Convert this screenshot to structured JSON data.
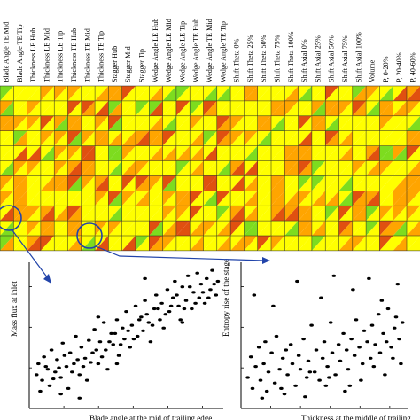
{
  "chart_data": [
    {
      "type": "heatmap",
      "title": "",
      "columns": [
        "Blade Angle TE Mid",
        "Blade Angle TE Tip",
        "Thickness LE Hub",
        "Thickness LE Mid",
        "Thickness LE Tip",
        "Thickness TE Hub",
        "Thickness TE Mid",
        "Thickness TE Tip",
        "Stagger Hub",
        "Stagger Mid",
        "Stagger Tip",
        "Wedge Angle LE Hub",
        "Wedge Angle LE Mid",
        "Wedge Angle LE Tip",
        "Wedge Angle TE Hub",
        "Wedge Angle TE Mid",
        "Wedge Angle TE Tip",
        "Shift Theta 0%",
        "Shift Theta 25%",
        "Shift Theta 50%",
        "Shift Theta 75%",
        "Shift Theta 100%",
        "Shift Axial 0%",
        "Shift Axial 25%",
        "Shift Axial 50%",
        "Shift Axial 75%",
        "Shift Axial 100%",
        "Volume",
        "P, 0-20%",
        "P, 20-40%",
        "P, 40-60%"
      ],
      "rows": 11,
      "cell_style": "each cell split diagonally into two triangles; color encodes correlation strength (yellow = low, orange/red = high, green = high)",
      "colors": {
        "low": "#ffff00",
        "mid": "#ffa500",
        "high": "#e05010",
        "strong": "#7ddc1f",
        "grid": "#222222"
      },
      "highlighted": [
        {
          "note": "left circle",
          "column": "Blade Angle TE Mid",
          "row": 10
        },
        {
          "note": "right circle",
          "column": "Thickness TE Mid",
          "row": 11
        }
      ]
    },
    {
      "type": "scatter",
      "title": "",
      "xlabel": "Blade angle at the mid of trailing edge",
      "ylabel": "Mass flux at inlet",
      "trend": "positive correlation",
      "points": [
        [
          0.02,
          0.22
        ],
        [
          0.03,
          0.3
        ],
        [
          0.05,
          0.18
        ],
        [
          0.06,
          0.35
        ],
        [
          0.08,
          0.26
        ],
        [
          0.09,
          0.14
        ],
        [
          0.1,
          0.4
        ],
        [
          0.12,
          0.24
        ],
        [
          0.13,
          0.33
        ],
        [
          0.15,
          0.2
        ],
        [
          0.16,
          0.45
        ],
        [
          0.18,
          0.28
        ],
        [
          0.19,
          0.12
        ],
        [
          0.2,
          0.38
        ],
        [
          0.22,
          0.3
        ],
        [
          0.23,
          0.5
        ],
        [
          0.25,
          0.22
        ],
        [
          0.26,
          0.42
        ],
        [
          0.28,
          0.34
        ],
        [
          0.29,
          0.18
        ],
        [
          0.3,
          0.47
        ],
        [
          0.32,
          0.38
        ],
        [
          0.33,
          0.55
        ],
        [
          0.35,
          0.3
        ],
        [
          0.36,
          0.46
        ],
        [
          0.38,
          0.6
        ],
        [
          0.39,
          0.4
        ],
        [
          0.4,
          0.26
        ],
        [
          0.42,
          0.52
        ],
        [
          0.43,
          0.44
        ],
        [
          0.45,
          0.62
        ],
        [
          0.46,
          0.36
        ],
        [
          0.48,
          0.56
        ],
        [
          0.49,
          0.48
        ],
        [
          0.5,
          0.68
        ],
        [
          0.52,
          0.42
        ],
        [
          0.53,
          0.58
        ],
        [
          0.55,
          0.72
        ],
        [
          0.56,
          0.5
        ],
        [
          0.58,
          0.64
        ],
        [
          0.59,
          0.54
        ],
        [
          0.6,
          0.76
        ],
        [
          0.62,
          0.6
        ],
        [
          0.63,
          0.46
        ],
        [
          0.65,
          0.7
        ],
        [
          0.66,
          0.8
        ],
        [
          0.68,
          0.62
        ],
        [
          0.69,
          0.74
        ],
        [
          0.7,
          0.56
        ],
        [
          0.72,
          0.84
        ],
        [
          0.73,
          0.68
        ],
        [
          0.75,
          0.78
        ],
        [
          0.76,
          0.9
        ],
        [
          0.78,
          0.72
        ],
        [
          0.79,
          0.62
        ],
        [
          0.8,
          0.86
        ],
        [
          0.82,
          0.76
        ],
        [
          0.83,
          0.94
        ],
        [
          0.85,
          0.7
        ],
        [
          0.86,
          0.82
        ],
        [
          0.88,
          0.96
        ],
        [
          0.89,
          0.78
        ],
        [
          0.9,
          0.88
        ],
        [
          0.92,
          0.74
        ],
        [
          0.93,
          0.92
        ],
        [
          0.95,
          0.84
        ],
        [
          0.96,
          0.98
        ],
        [
          0.98,
          0.8
        ],
        [
          0.99,
          0.9
        ],
        [
          0.04,
          0.1
        ],
        [
          0.07,
          0.28
        ],
        [
          0.11,
          0.19
        ],
        [
          0.14,
          0.27
        ],
        [
          0.17,
          0.36
        ],
        [
          0.21,
          0.24
        ],
        [
          0.24,
          0.33
        ],
        [
          0.27,
          0.28
        ],
        [
          0.31,
          0.31
        ],
        [
          0.34,
          0.4
        ],
        [
          0.37,
          0.35
        ],
        [
          0.41,
          0.46
        ],
        [
          0.44,
          0.52
        ],
        [
          0.47,
          0.44
        ],
        [
          0.51,
          0.54
        ],
        [
          0.54,
          0.48
        ],
        [
          0.57,
          0.62
        ],
        [
          0.61,
          0.66
        ],
        [
          0.64,
          0.58
        ],
        [
          0.67,
          0.7
        ],
        [
          0.71,
          0.66
        ],
        [
          0.74,
          0.72
        ],
        [
          0.77,
          0.8
        ],
        [
          0.81,
          0.7
        ],
        [
          0.84,
          0.86
        ],
        [
          0.87,
          0.74
        ],
        [
          0.91,
          0.82
        ],
        [
          0.94,
          0.78
        ],
        [
          0.97,
          0.88
        ],
        [
          0.15,
          0.08
        ],
        [
          0.45,
          0.3
        ],
        [
          0.6,
          0.92
        ],
        [
          0.35,
          0.64
        ],
        [
          0.8,
          0.6
        ],
        [
          0.25,
          0.05
        ]
      ]
    },
    {
      "type": "scatter",
      "title": "",
      "xlabel": "Thickness at the middle of trailing",
      "ylabel": "Entropy rise of the stage",
      "trend": "weak positive correlation",
      "points": [
        [
          0.02,
          0.2
        ],
        [
          0.04,
          0.35
        ],
        [
          0.05,
          0.12
        ],
        [
          0.07,
          0.28
        ],
        [
          0.09,
          0.42
        ],
        [
          0.1,
          0.18
        ],
        [
          0.12,
          0.3
        ],
        [
          0.14,
          0.1
        ],
        [
          0.15,
          0.24
        ],
        [
          0.17,
          0.38
        ],
        [
          0.19,
          0.16
        ],
        [
          0.2,
          0.5
        ],
        [
          0.22,
          0.26
        ],
        [
          0.24,
          0.34
        ],
        [
          0.25,
          0.08
        ],
        [
          0.27,
          0.22
        ],
        [
          0.29,
          0.44
        ],
        [
          0.3,
          0.3
        ],
        [
          0.32,
          0.14
        ],
        [
          0.34,
          0.36
        ],
        [
          0.35,
          0.26
        ],
        [
          0.37,
          0.48
        ],
        [
          0.39,
          0.2
        ],
        [
          0.4,
          0.32
        ],
        [
          0.42,
          0.58
        ],
        [
          0.44,
          0.24
        ],
        [
          0.45,
          0.4
        ],
        [
          0.47,
          0.18
        ],
        [
          0.49,
          0.34
        ],
        [
          0.5,
          0.46
        ],
        [
          0.52,
          0.28
        ],
        [
          0.54,
          0.6
        ],
        [
          0.55,
          0.38
        ],
        [
          0.57,
          0.22
        ],
        [
          0.59,
          0.44
        ],
        [
          0.6,
          0.32
        ],
        [
          0.62,
          0.52
        ],
        [
          0.64,
          0.4
        ],
        [
          0.65,
          0.26
        ],
        [
          0.67,
          0.48
        ],
        [
          0.69,
          0.36
        ],
        [
          0.7,
          0.62
        ],
        [
          0.72,
          0.42
        ],
        [
          0.74,
          0.3
        ],
        [
          0.75,
          0.54
        ],
        [
          0.77,
          0.46
        ],
        [
          0.79,
          0.34
        ],
        [
          0.8,
          0.58
        ],
        [
          0.82,
          0.44
        ],
        [
          0.84,
          0.66
        ],
        [
          0.85,
          0.38
        ],
        [
          0.87,
          0.52
        ],
        [
          0.89,
          0.46
        ],
        [
          0.9,
          0.7
        ],
        [
          0.92,
          0.42
        ],
        [
          0.94,
          0.56
        ],
        [
          0.95,
          0.64
        ],
        [
          0.97,
          0.48
        ],
        [
          0.99,
          0.6
        ],
        [
          0.06,
          0.8
        ],
        [
          0.18,
          0.72
        ],
        [
          0.33,
          0.9
        ],
        [
          0.48,
          0.78
        ],
        [
          0.56,
          0.94
        ],
        [
          0.68,
          0.84
        ],
        [
          0.78,
          0.92
        ],
        [
          0.86,
          0.76
        ],
        [
          0.96,
          0.88
        ],
        [
          0.11,
          0.05
        ],
        [
          0.23,
          0.12
        ],
        [
          0.38,
          0.06
        ],
        [
          0.51,
          0.14
        ],
        [
          0.63,
          0.1
        ],
        [
          0.73,
          0.18
        ],
        [
          0.88,
          0.22
        ],
        [
          0.98,
          0.3
        ],
        [
          0.13,
          0.46
        ],
        [
          0.26,
          0.4
        ],
        [
          0.41,
          0.24
        ],
        [
          0.53,
          0.2
        ],
        [
          0.66,
          0.14
        ],
        [
          0.81,
          0.28
        ],
        [
          0.93,
          0.34
        ]
      ]
    }
  ]
}
